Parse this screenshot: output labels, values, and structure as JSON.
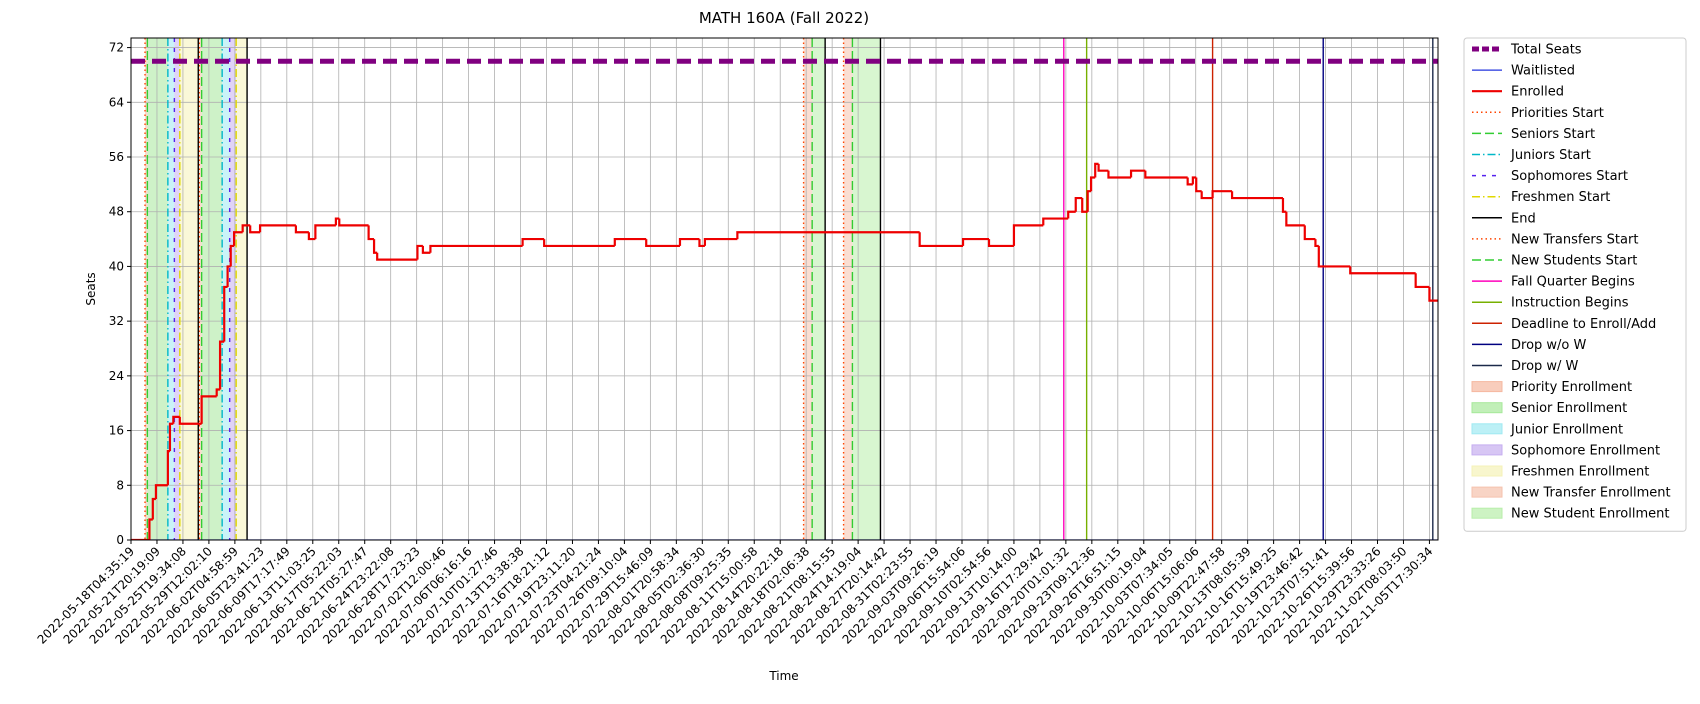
{
  "chart_data": {
    "type": "line",
    "title": "MATH 160A (Fall 2022)",
    "x_label": "Time",
    "y_label": "Seats",
    "grid": true,
    "legend": "outside right",
    "xlim": [
      0,
      50.33
    ],
    "ylim": [
      0,
      73.4
    ],
    "yticks": [
      0,
      8,
      16,
      24,
      32,
      40,
      48,
      56,
      64,
      72
    ],
    "xticks": [
      {
        "value": 0,
        "label": "2022-05-18T04:35:19"
      },
      {
        "value": 1,
        "label": "2022-05-21T20:19:09"
      },
      {
        "value": 2,
        "label": "2022-05-25T19:34:08"
      },
      {
        "value": 3,
        "label": "2022-05-29T12:02:10"
      },
      {
        "value": 4,
        "label": "2022-06-02T04:58:59"
      },
      {
        "value": 5,
        "label": "2022-06-05T23:41:23"
      },
      {
        "value": 6,
        "label": "2022-06-09T17:17:49"
      },
      {
        "value": 7,
        "label": "2022-06-13T11:03:25"
      },
      {
        "value": 8,
        "label": "2022-06-17T05:22:03"
      },
      {
        "value": 9,
        "label": "2022-06-21T05:27:47"
      },
      {
        "value": 10,
        "label": "2022-06-24T23:22:08"
      },
      {
        "value": 11,
        "label": "2022-06-28T17:23:23"
      },
      {
        "value": 12,
        "label": "2022-07-02T12:00:46"
      },
      {
        "value": 13,
        "label": "2022-07-06T06:16:16"
      },
      {
        "value": 14,
        "label": "2022-07-10T01:27:46"
      },
      {
        "value": 15,
        "label": "2022-07-13T13:38:38"
      },
      {
        "value": 16,
        "label": "2022-07-16T18:21:12"
      },
      {
        "value": 17,
        "label": "2022-07-19T23:11:20"
      },
      {
        "value": 18,
        "label": "2022-07-23T04:21:24"
      },
      {
        "value": 19,
        "label": "2022-07-26T09:10:04"
      },
      {
        "value": 20,
        "label": "2022-07-29T15:46:09"
      },
      {
        "value": 21,
        "label": "2022-08-01T20:58:34"
      },
      {
        "value": 22,
        "label": "2022-08-05T02:36:30"
      },
      {
        "value": 23,
        "label": "2022-08-08T09:25:35"
      },
      {
        "value": 24,
        "label": "2022-08-11T15:00:58"
      },
      {
        "value": 25,
        "label": "2022-08-14T20:22:18"
      },
      {
        "value": 26,
        "label": "2022-08-18T02:06:38"
      },
      {
        "value": 27,
        "label": "2022-08-21T08:15:55"
      },
      {
        "value": 28,
        "label": "2022-08-24T14:19:04"
      },
      {
        "value": 29,
        "label": "2022-08-27T20:14:42"
      },
      {
        "value": 30,
        "label": "2022-08-31T02:23:55"
      },
      {
        "value": 31,
        "label": "2022-09-03T09:26:19"
      },
      {
        "value": 32,
        "label": "2022-09-06T15:54:06"
      },
      {
        "value": 33,
        "label": "2022-09-10T02:54:56"
      },
      {
        "value": 34,
        "label": "2022-09-13T10:14:00"
      },
      {
        "value": 35,
        "label": "2022-09-16T17:29:42"
      },
      {
        "value": 36,
        "label": "2022-09-20T01:01:32"
      },
      {
        "value": 37,
        "label": "2022-09-23T09:12:36"
      },
      {
        "value": 38,
        "label": "2022-09-26T16:51:15"
      },
      {
        "value": 39,
        "label": "2022-09-30T00:19:04"
      },
      {
        "value": 40,
        "label": "2022-10-03T07:34:05"
      },
      {
        "value": 41,
        "label": "2022-10-06T15:06:06"
      },
      {
        "value": 42,
        "label": "2022-10-09T22:47:58"
      },
      {
        "value": 43,
        "label": "2022-10-13T08:05:39"
      },
      {
        "value": 44,
        "label": "2022-10-16T15:49:25"
      },
      {
        "value": 45,
        "label": "2022-10-19T23:46:42"
      },
      {
        "value": 46,
        "label": "2022-10-23T07:51:41"
      },
      {
        "value": 47,
        "label": "2022-10-26T15:39:56"
      },
      {
        "value": 48,
        "label": "2022-10-29T23:33:26"
      },
      {
        "value": 49,
        "label": "2022-11-02T08:03:50"
      },
      {
        "value": 50,
        "label": "2022-11-05T17:30:34"
      }
    ],
    "series": [
      {
        "name": "Total Seats",
        "color": "#800080",
        "style": "dashed",
        "width": 5,
        "x": [
          0,
          50.33
        ],
        "values": [
          70,
          70
        ]
      },
      {
        "name": "Waitlisted",
        "color": "#2233dd",
        "style": "solid",
        "width": 1.3,
        "x": [
          0,
          50.33
        ],
        "values": [
          0,
          0
        ]
      },
      {
        "name": "Enrolled",
        "color": "#ee0000",
        "style": "solid",
        "width": 2.2,
        "step": "post",
        "x": [
          0,
          0.71,
          0.84,
          0.96,
          1.42,
          1.5,
          1.63,
          1.88,
          2.72,
          3.3,
          3.43,
          3.59,
          3.72,
          3.84,
          3.97,
          4.3,
          4.59,
          4.97,
          6.35,
          6.85,
          7.1,
          7.89,
          8.02,
          9.15,
          9.36,
          9.48,
          11.03,
          11.24,
          11.53,
          15.08,
          15.91,
          18.63,
          19.84,
          21.14,
          21.89,
          22.1,
          23.35,
          30.37,
          32.04,
          33.04,
          34.0,
          35.13,
          36.09,
          36.38,
          36.63,
          36.84,
          36.97,
          37.13,
          37.26,
          37.64,
          38.51,
          39.06,
          40.69,
          40.89,
          41.02,
          41.23,
          41.65,
          42.4,
          44.36,
          44.49,
          45.2,
          45.61,
          45.74,
          46.95,
          49.47,
          50.0,
          50.33
        ],
        "values": [
          0,
          3,
          6,
          8,
          13,
          17,
          18,
          17,
          21,
          22,
          29,
          37,
          40,
          43,
          45,
          46,
          45,
          46,
          45,
          44,
          46,
          47,
          46,
          44,
          42,
          41,
          43,
          42,
          43,
          44,
          43,
          44,
          43,
          44,
          43,
          44,
          45,
          43,
          44,
          43,
          46,
          47,
          48,
          50,
          48,
          51,
          53,
          55,
          54,
          53,
          54,
          53,
          52,
          53,
          51,
          50,
          51,
          50,
          48,
          46,
          44,
          43,
          40,
          39,
          37,
          35,
          35
        ]
      }
    ],
    "events": [
      {
        "name": "Priorities Start",
        "color": "#ff4500",
        "style": "dotted",
        "x": [
          0.54,
          2.63
        ]
      },
      {
        "name": "Seniors Start",
        "color": "#32cd32",
        "style": "dashed",
        "x": [
          0.63,
          2.72
        ]
      },
      {
        "name": "Juniors Start",
        "color": "#00b8c8",
        "style": "dashdot",
        "x": [
          1.42,
          3.51
        ]
      },
      {
        "name": "Sophomores Start",
        "color": "#5522ee",
        "style": "loosedash",
        "x": [
          1.67,
          3.8
        ]
      },
      {
        "name": "Freshmen Start",
        "color": "#e0d800",
        "style": "dashdot",
        "x": [
          1.88,
          4.05
        ]
      },
      {
        "name": "End",
        "color": "#000000",
        "style": "solid",
        "x": [
          2.59,
          4.47,
          26.73,
          28.86
        ]
      },
      {
        "name": "New Transfers Start",
        "color": "#ff4500",
        "style": "dotted",
        "x": [
          25.9,
          27.44
        ]
      },
      {
        "name": "New Students Start",
        "color": "#32cd32",
        "style": "dashed",
        "x": [
          26.23,
          27.78
        ]
      },
      {
        "name": "Fall Quarter Begins",
        "color": "#ff00bb",
        "style": "solid",
        "x": [
          35.92
        ]
      },
      {
        "name": "Instruction Begins",
        "color": "#77b000",
        "style": "solid",
        "x": [
          36.8
        ]
      },
      {
        "name": "Deadline to Enroll/Add",
        "color": "#cc2200",
        "style": "solid",
        "x": [
          41.65
        ]
      },
      {
        "name": "Drop w/o W",
        "color": "#000080",
        "style": "solid",
        "x": [
          45.91
        ]
      },
      {
        "name": "Drop w/ W",
        "color": "#1c2a4a",
        "style": "solid",
        "x": [
          50.13
        ]
      }
    ],
    "regions": [
      {
        "name": "Priority Enrollment",
        "color": "#f5b8a0",
        "spans": [
          [
            0.54,
            0.63
          ],
          [
            2.63,
            2.72
          ]
        ]
      },
      {
        "name": "Senior Enrollment",
        "color": "#a6e89a",
        "spans": [
          [
            0.63,
            1.42
          ],
          [
            2.72,
            3.51
          ]
        ]
      },
      {
        "name": "Junior Enrollment",
        "color": "#9fe9f2",
        "spans": [
          [
            1.42,
            1.67
          ],
          [
            3.51,
            3.8
          ]
        ]
      },
      {
        "name": "Sophomore Enrollment",
        "color": "#c6aef0",
        "spans": [
          [
            1.67,
            1.88
          ],
          [
            3.8,
            4.05
          ]
        ]
      },
      {
        "name": "Freshmen Enrollment",
        "color": "#f5f2b8",
        "spans": [
          [
            1.88,
            2.59
          ],
          [
            4.05,
            4.47
          ]
        ]
      },
      {
        "name": "New Transfer Enrollment",
        "color": "#f5c2ad",
        "spans": [
          [
            25.9,
            26.23
          ],
          [
            27.44,
            27.78
          ]
        ]
      },
      {
        "name": "New Student Enrollment",
        "color": "#b8eeaa",
        "spans": [
          [
            26.23,
            26.73
          ],
          [
            27.78,
            28.86
          ]
        ]
      }
    ]
  }
}
